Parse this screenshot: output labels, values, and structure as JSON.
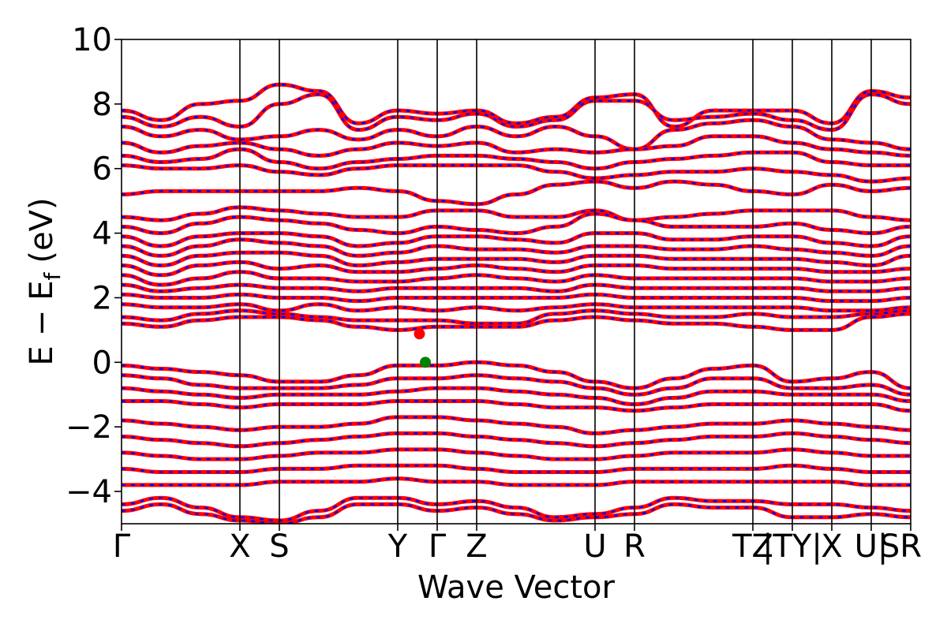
{
  "chart_data": {
    "type": "line",
    "xlabel": "Wave Vector",
    "ylabel_parts": {
      "e": "E",
      "minus": "−",
      "ef": "E",
      "sub": "f",
      "unit": "(eV)"
    },
    "ylim": [
      -5,
      10
    ],
    "yticks": [
      -4,
      -2,
      0,
      2,
      4,
      6,
      8,
      10
    ],
    "ytick_labels": [
      "−4",
      "−2",
      "0",
      "2",
      "4",
      "6",
      "8",
      "10"
    ],
    "xlim": [
      0,
      20
    ],
    "kpoints": [
      {
        "x": 0,
        "label": "Γ"
      },
      {
        "x": 3,
        "label": "X"
      },
      {
        "x": 4,
        "label": "S"
      },
      {
        "x": 7,
        "label": "Y"
      },
      {
        "x": 8,
        "label": "Γ"
      },
      {
        "x": 9,
        "label": "Z"
      },
      {
        "x": 12,
        "label": "U"
      },
      {
        "x": 13,
        "label": "R"
      },
      {
        "x": 16,
        "label": "TZ"
      },
      {
        "x": 17,
        "label": "|TY|"
      },
      {
        "x": 18,
        "label": "X"
      },
      {
        "x": 19,
        "label": "U|"
      },
      {
        "x": 20,
        "label": "SR"
      }
    ],
    "band_colors": {
      "primary": "#ff0000",
      "secondary": "#0000ff"
    },
    "series": [
      {
        "values": [
          7.8,
          7.5,
          8.0,
          8.1,
          8.6,
          8.4,
          7.4,
          7.8,
          7.7,
          7.8,
          7.4,
          7.6,
          8.2,
          8.3,
          7.3,
          7.8,
          7.8,
          7.8,
          7.4,
          8.4,
          8.2
        ]
      },
      {
        "values": [
          7.6,
          7.3,
          7.6,
          7.3,
          8.0,
          8.3,
          7.2,
          7.6,
          7.5,
          7.7,
          7.3,
          7.5,
          8.1,
          8.1,
          7.5,
          7.6,
          7.7,
          7.5,
          7.2,
          8.3,
          8.0
        ]
      },
      {
        "values": [
          7.3,
          7.0,
          7.2,
          6.9,
          7.0,
          7.2,
          6.9,
          7.2,
          7.0,
          7.3,
          7.0,
          7.3,
          7.0,
          6.6,
          7.2,
          7.4,
          7.5,
          7.3,
          6.9,
          6.8,
          6.6
        ]
      },
      {
        "values": [
          6.8,
          6.5,
          6.7,
          6.8,
          6.6,
          6.4,
          6.6,
          6.8,
          6.7,
          6.8,
          6.5,
          6.6,
          6.5,
          6.6,
          6.7,
          7.0,
          7.0,
          6.8,
          6.6,
          6.5,
          6.4
        ]
      },
      {
        "values": [
          6.4,
          6.2,
          6.3,
          6.6,
          6.2,
          6.0,
          6.2,
          6.3,
          6.4,
          6.4,
          6.3,
          6.2,
          6.0,
          6.2,
          6.3,
          6.4,
          6.5,
          6.5,
          6.2,
          6.1,
          6.1
        ]
      },
      {
        "values": [
          6.1,
          6.0,
          6.0,
          6.1,
          5.9,
          5.8,
          6.0,
          6.1,
          6.1,
          6.1,
          6.1,
          5.9,
          5.7,
          5.8,
          5.9,
          5.9,
          6.0,
          5.9,
          5.8,
          5.6,
          5.7
        ]
      },
      {
        "values": [
          5.2,
          5.3,
          5.3,
          5.3,
          5.3,
          5.3,
          5.4,
          5.3,
          5.0,
          4.9,
          5.2,
          5.5,
          5.6,
          5.4,
          5.6,
          5.5,
          5.3,
          5.2,
          5.5,
          5.3,
          5.4
        ]
      },
      {
        "values": [
          4.5,
          4.4,
          4.6,
          4.8,
          4.7,
          4.6,
          4.5,
          4.5,
          4.7,
          4.7,
          4.5,
          4.5,
          4.7,
          4.4,
          4.5,
          4.6,
          4.7,
          4.7,
          4.7,
          4.5,
          4.4
        ]
      },
      {
        "values": [
          4.2,
          4.0,
          4.3,
          4.5,
          4.4,
          4.3,
          4.1,
          4.0,
          4.2,
          4.1,
          4.0,
          4.2,
          4.6,
          4.4,
          4.2,
          4.2,
          4.2,
          4.3,
          4.1,
          4.0,
          4.2
        ]
      },
      {
        "values": [
          3.9,
          3.6,
          3.9,
          4.0,
          4.0,
          3.9,
          3.6,
          3.7,
          3.9,
          3.9,
          3.8,
          3.7,
          4.0,
          4.0,
          3.8,
          3.8,
          3.9,
          3.9,
          3.7,
          3.6,
          3.9
        ]
      },
      {
        "values": [
          3.6,
          3.3,
          3.6,
          3.8,
          3.7,
          3.6,
          3.3,
          3.4,
          3.6,
          3.5,
          3.5,
          3.4,
          3.6,
          3.6,
          3.5,
          3.5,
          3.6,
          3.5,
          3.4,
          3.3,
          3.6
        ]
      },
      {
        "values": [
          3.3,
          3.0,
          3.3,
          3.4,
          3.4,
          3.3,
          3.0,
          3.1,
          3.2,
          3.2,
          3.2,
          3.1,
          3.3,
          3.3,
          3.2,
          3.2,
          3.2,
          3.2,
          3.1,
          3.0,
          3.3
        ]
      },
      {
        "values": [
          3.0,
          2.7,
          3.0,
          3.1,
          2.9,
          3.0,
          2.8,
          2.8,
          2.9,
          3.0,
          2.9,
          2.8,
          3.0,
          3.0,
          2.9,
          2.9,
          2.9,
          2.9,
          2.8,
          2.8,
          2.9
        ]
      },
      {
        "values": [
          2.7,
          2.4,
          2.6,
          2.8,
          2.6,
          2.6,
          2.5,
          2.5,
          2.6,
          2.7,
          2.6,
          2.5,
          2.7,
          2.6,
          2.6,
          2.6,
          2.6,
          2.6,
          2.5,
          2.5,
          2.6
        ]
      },
      {
        "values": [
          2.4,
          2.2,
          2.3,
          2.4,
          2.3,
          2.3,
          2.2,
          2.3,
          2.3,
          2.3,
          2.3,
          2.2,
          2.4,
          2.3,
          2.3,
          2.3,
          2.3,
          2.3,
          2.2,
          2.2,
          2.3
        ]
      },
      {
        "values": [
          2.1,
          2.0,
          2.0,
          2.1,
          2.0,
          2.0,
          1.9,
          2.0,
          2.0,
          2.0,
          2.0,
          2.0,
          2.1,
          2.0,
          2.0,
          2.0,
          2.0,
          2.0,
          1.9,
          1.9,
          2.0
        ]
      },
      {
        "values": [
          1.8,
          1.7,
          1.7,
          1.8,
          1.6,
          1.8,
          1.6,
          1.7,
          1.6,
          1.7,
          1.6,
          1.7,
          1.8,
          1.7,
          1.7,
          1.7,
          1.7,
          1.7,
          1.6,
          1.6,
          1.7
        ]
      },
      {
        "values": [
          1.4,
          1.3,
          1.5,
          1.6,
          1.5,
          1.4,
          1.3,
          1.3,
          1.3,
          1.2,
          1.2,
          1.5,
          1.6,
          1.5,
          1.4,
          1.4,
          1.5,
          1.4,
          1.4,
          1.5,
          1.6
        ]
      },
      {
        "values": [
          1.2,
          1.1,
          1.3,
          1.4,
          1.4,
          1.3,
          1.1,
          1.0,
          1.1,
          1.1,
          1.1,
          1.3,
          1.4,
          1.3,
          1.2,
          1.2,
          1.1,
          1.0,
          1.0,
          1.4,
          1.5
        ]
      },
      {
        "values": [
          -0.1,
          -0.2,
          -0.3,
          -0.4,
          -0.6,
          -0.6,
          -0.4,
          -0.1,
          -0.1,
          0.0,
          -0.1,
          -0.3,
          -0.6,
          -0.8,
          -0.5,
          -0.2,
          -0.1,
          -0.6,
          -0.5,
          -0.3,
          -0.8
        ]
      },
      {
        "values": [
          -0.4,
          -0.5,
          -0.7,
          -0.8,
          -0.8,
          -0.8,
          -0.7,
          -0.5,
          -0.5,
          -0.4,
          -0.5,
          -0.6,
          -0.8,
          -1.0,
          -0.8,
          -0.5,
          -0.5,
          -0.8,
          -0.8,
          -0.7,
          -1.0
        ]
      },
      {
        "values": [
          -0.8,
          -0.9,
          -1.0,
          -1.1,
          -1.0,
          -1.0,
          -1.0,
          -0.9,
          -0.8,
          -0.8,
          -0.9,
          -1.0,
          -1.1,
          -1.3,
          -1.1,
          -0.9,
          -0.9,
          -1.0,
          -1.0,
          -1.0,
          -1.2
        ]
      },
      {
        "values": [
          -1.2,
          -1.2,
          -1.3,
          -1.4,
          -1.3,
          -1.3,
          -1.3,
          -1.2,
          -1.2,
          -1.2,
          -1.3,
          -1.4,
          -1.4,
          -1.5,
          -1.4,
          -1.3,
          -1.3,
          -1.3,
          -1.3,
          -1.3,
          -1.5
        ]
      },
      {
        "values": [
          -1.8,
          -1.9,
          -2.0,
          -2.1,
          -2.0,
          -2.0,
          -1.9,
          -1.7,
          -1.7,
          -1.8,
          -1.9,
          -2.0,
          -2.2,
          -2.1,
          -2.0,
          -1.9,
          -1.9,
          -1.8,
          -1.9,
          -2.0,
          -2.1
        ]
      },
      {
        "values": [
          -2.3,
          -2.4,
          -2.5,
          -2.6,
          -2.5,
          -2.4,
          -2.3,
          -2.2,
          -2.2,
          -2.3,
          -2.4,
          -2.5,
          -2.6,
          -2.5,
          -2.4,
          -2.3,
          -2.3,
          -2.2,
          -2.3,
          -2.4,
          -2.5
        ]
      },
      {
        "values": [
          -2.8,
          -2.9,
          -3.0,
          -3.0,
          -2.9,
          -2.8,
          -2.8,
          -2.7,
          -2.7,
          -2.8,
          -2.9,
          -3.0,
          -3.0,
          -2.9,
          -2.8,
          -2.8,
          -2.8,
          -2.7,
          -2.8,
          -2.9,
          -2.9
        ]
      },
      {
        "values": [
          -3.3,
          -3.4,
          -3.4,
          -3.4,
          -3.3,
          -3.3,
          -3.2,
          -3.2,
          -3.2,
          -3.3,
          -3.4,
          -3.4,
          -3.4,
          -3.3,
          -3.3,
          -3.3,
          -3.3,
          -3.2,
          -3.3,
          -3.4,
          -3.4
        ]
      },
      {
        "values": [
          -3.8,
          -3.8,
          -3.8,
          -3.8,
          -3.7,
          -3.7,
          -3.7,
          -3.6,
          -3.7,
          -3.7,
          -3.8,
          -3.8,
          -3.8,
          -3.7,
          -3.7,
          -3.7,
          -3.7,
          -3.7,
          -3.7,
          -3.8,
          -3.8
        ]
      },
      {
        "values": [
          -4.4,
          -4.2,
          -4.5,
          -4.8,
          -4.9,
          -4.6,
          -4.2,
          -4.2,
          -4.4,
          -4.3,
          -4.5,
          -4.8,
          -4.7,
          -4.5,
          -4.2,
          -4.3,
          -4.3,
          -4.4,
          -4.4,
          -4.5,
          -4.6
        ]
      },
      {
        "values": [
          -4.6,
          -4.4,
          -4.7,
          -4.9,
          -5.0,
          -4.8,
          -4.4,
          -4.4,
          -4.6,
          -4.5,
          -4.7,
          -4.9,
          -4.8,
          -4.7,
          -4.4,
          -4.5,
          -4.5,
          -4.8,
          -4.8,
          -4.7,
          -4.8
        ]
      }
    ],
    "markers": [
      {
        "x": 7.55,
        "y": 0.88,
        "color": "#ff0000"
      },
      {
        "x": 7.7,
        "y": 0.0,
        "color": "#008000"
      }
    ]
  }
}
